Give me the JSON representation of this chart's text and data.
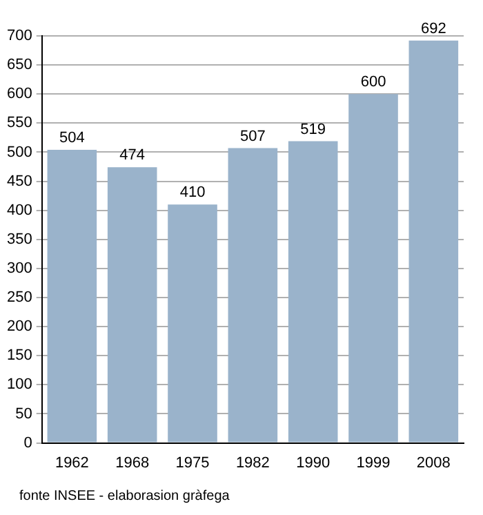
{
  "chart_data": {
    "type": "bar",
    "categories": [
      "1962",
      "1968",
      "1975",
      "1982",
      "1990",
      "1999",
      "2008"
    ],
    "values": [
      504,
      474,
      410,
      507,
      519,
      600,
      692
    ],
    "color": "#9ab3cb",
    "ylim": [
      0,
      700
    ],
    "yticks": [
      0,
      50,
      100,
      150,
      200,
      250,
      300,
      350,
      400,
      450,
      500,
      550,
      600,
      650,
      700
    ],
    "grid": "y",
    "legend": false,
    "data_labels": true,
    "annotations": [
      "fonte INSEE - elaborasion gràfega"
    ]
  }
}
